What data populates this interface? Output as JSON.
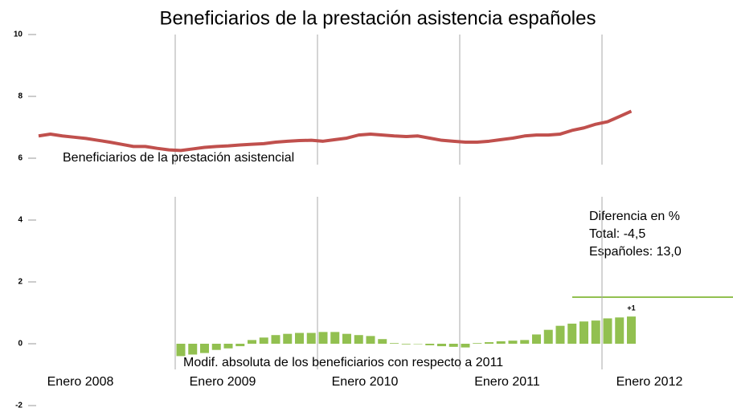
{
  "chart_data": {
    "type": "line_bar",
    "title": "Beneficiarios de la prestación asistencia españoles",
    "categories": [
      "Enero 2008",
      null,
      null,
      null,
      null,
      null,
      null,
      null,
      null,
      null,
      null,
      null,
      "Enero 2009",
      null,
      null,
      null,
      null,
      null,
      null,
      null,
      null,
      null,
      null,
      null,
      "Enero 2010",
      null,
      null,
      null,
      null,
      null,
      null,
      null,
      null,
      null,
      null,
      null,
      "Enero 2011",
      null,
      null,
      null,
      null,
      null,
      null,
      null,
      null,
      null,
      null,
      null,
      "Enero 2012",
      null,
      null
    ],
    "series": [
      {
        "name": "Beneficiarios de la prestación asistencial",
        "type": "line",
        "color": "#c0504d",
        "values": [
          6.72,
          6.78,
          6.72,
          6.68,
          6.64,
          6.58,
          6.52,
          6.45,
          6.38,
          6.38,
          6.32,
          6.27,
          6.25,
          6.3,
          6.35,
          6.38,
          6.4,
          6.43,
          6.45,
          6.47,
          6.52,
          6.55,
          6.57,
          6.58,
          6.55,
          6.6,
          6.65,
          6.75,
          6.78,
          6.75,
          6.72,
          6.7,
          6.72,
          6.65,
          6.58,
          6.55,
          6.52,
          6.52,
          6.55,
          6.6,
          6.65,
          6.72,
          6.75,
          6.75,
          6.78,
          6.9,
          6.98,
          7.1,
          7.18,
          7.35,
          7.52
        ]
      },
      {
        "name": "Modif. absoluta de los beneficiarios con respecto a 2011",
        "type": "bar",
        "color": "#92c050",
        "values": [
          null,
          null,
          null,
          null,
          null,
          null,
          null,
          null,
          null,
          null,
          null,
          null,
          -0.4,
          -0.35,
          -0.3,
          -0.2,
          -0.15,
          -0.08,
          0.12,
          0.2,
          0.28,
          0.32,
          0.35,
          0.35,
          0.38,
          0.38,
          0.32,
          0.28,
          0.25,
          0.15,
          0.02,
          -0.02,
          0.0,
          -0.05,
          -0.08,
          -0.1,
          -0.12,
          0.02,
          0.05,
          0.08,
          0.1,
          0.12,
          0.3,
          0.45,
          0.58,
          0.65,
          0.72,
          0.75,
          0.82,
          0.85,
          0.88
        ]
      }
    ],
    "bar_annotation": "+1",
    "box": {
      "title": "Diferencia en %",
      "lines": [
        "Total: -4,5",
        "Españoles: 13,0"
      ]
    },
    "ylim": [
      -2,
      10
    ],
    "yticks": [
      -2,
      0,
      2,
      4,
      6,
      8,
      10
    ],
    "grid": true
  }
}
